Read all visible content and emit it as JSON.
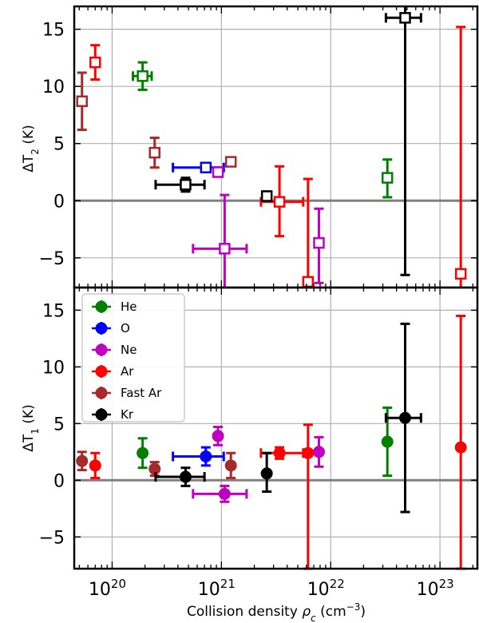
{
  "colors": {
    "He": "#008000",
    "O": "#0000ff",
    "Ne": "#bf00bf",
    "Ar": "#ff0000",
    "Fast Ar": "#a52a2a",
    "Kr": "#000000",
    "zero_line": "#808080",
    "grid": "#b0b0b0"
  },
  "chart_data": [
    {
      "type": "scatter",
      "panel": "top",
      "ylabel_main": "ΔT",
      "ylabel_sub": "2",
      "ylabel_unit": " (K)",
      "xscale": "log",
      "xlim": [
        4.5e+19,
        2.2e+23
      ],
      "ylim": [
        -7.6,
        17
      ],
      "yticks": [
        -5,
        0,
        5,
        10,
        15
      ],
      "grid": true,
      "zero_line": 0,
      "marker": "open-square",
      "points": [
        {
          "species": "He",
          "x": 1.9e+20,
          "y": 10.9,
          "yerr": [
            1.2,
            1.2
          ],
          "xerr": [
            1.55e+20,
            2.3e+20
          ]
        },
        {
          "species": "He",
          "x": 3.3e+22,
          "y": 2.0,
          "yerr": [
            1.7,
            1.6
          ]
        },
        {
          "species": "O",
          "x": 7.2e+20,
          "y": 2.9,
          "xerr": [
            3.6e+20,
            1.05e+21
          ]
        },
        {
          "species": "Ne",
          "x": 9.3e+20,
          "y": 2.5,
          "yerr": [
            0.4,
            0.4
          ]
        },
        {
          "species": "Ne",
          "x": 1.07e+21,
          "y": -4.2,
          "yerr": [
            3.7,
            4.7
          ],
          "xerr": [
            5.5e+20,
            1.7e+21
          ]
        },
        {
          "species": "Ne",
          "x": 7.8e+21,
          "y": -3.7,
          "yerr": [
            3.5,
            3.0
          ]
        },
        {
          "species": "Ar",
          "x": 7e+19,
          "y": 12.1,
          "yerr": [
            1.5,
            1.5
          ]
        },
        {
          "species": "Ar",
          "x": 3.4e+21,
          "y": -0.1,
          "yerr": [
            3.0,
            3.1
          ],
          "xerr": [
            2.3e+21,
            5.6e+21
          ]
        },
        {
          "species": "Ar",
          "x": 6.2e+21,
          "y": -7.1,
          "yerr": [
            1.0,
            9.0
          ]
        },
        {
          "species": "Ar",
          "x": 1.55e+23,
          "y": -6.4,
          "yerr": [
            2.0,
            21.6
          ]
        },
        {
          "species": "Fast Ar",
          "x": 5.3e+19,
          "y": 8.7,
          "yerr": [
            2.5,
            2.5
          ]
        },
        {
          "species": "Fast Ar",
          "x": 2.45e+20,
          "y": 4.2,
          "yerr": [
            1.3,
            1.3
          ]
        },
        {
          "species": "Fast Ar",
          "x": 1.22e+21,
          "y": 3.4,
          "yerr": [
            0.3,
            0.3
          ]
        },
        {
          "species": "Kr",
          "x": 4.7e+20,
          "y": 1.4,
          "yerr": [
            0.6,
            0.6
          ],
          "xerr": [
            2.5e+20,
            7e+20
          ]
        },
        {
          "species": "Kr",
          "x": 2.6e+21,
          "y": 0.4,
          "yerr": [
            0.4,
            0.4
          ]
        },
        {
          "species": "Kr",
          "x": 4.8e+22,
          "y": 16.0,
          "yerr": [
            22.5,
            1.2
          ],
          "xerr": [
            3.2e+22,
            6.7e+22
          ]
        }
      ]
    },
    {
      "type": "scatter",
      "panel": "bottom",
      "xlabel_main": "Collision density ",
      "xlabel_symbol": "ρ",
      "xlabel_symbol_sub": "c",
      "xlabel_unit_base": " (cm",
      "xlabel_unit_sup": "−3",
      "xlabel_unit_end": ")",
      "ylabel_main": "ΔT",
      "ylabel_sub": "1",
      "ylabel_unit": " (K)",
      "xscale": "log",
      "xlim": [
        4.5e+19,
        2.2e+23
      ],
      "ylim": [
        -7.8,
        17
      ],
      "yticks": [
        -5,
        0,
        5,
        10,
        15
      ],
      "xticks": [
        {
          "value": 1e+20,
          "base": "10",
          "exp": "20"
        },
        {
          "value": 1e+21,
          "base": "10",
          "exp": "21"
        },
        {
          "value": 1e+22,
          "base": "10",
          "exp": "22"
        },
        {
          "value": 1e+23,
          "base": "10",
          "exp": "23"
        }
      ],
      "grid": true,
      "zero_line": 0,
      "marker": "filled-circle",
      "legend": {
        "placement": "top-left",
        "entries": [
          "He",
          "O",
          "Ne",
          "Ar",
          "Fast Ar",
          "Kr"
        ]
      },
      "points": [
        {
          "species": "He",
          "x": 1.9e+20,
          "y": 2.4,
          "yerr": [
            1.3,
            1.3
          ]
        },
        {
          "species": "He",
          "x": 3.3e+22,
          "y": 3.4,
          "yerr": [
            3.0,
            3.0
          ]
        },
        {
          "species": "O",
          "x": 7.2e+20,
          "y": 2.1,
          "yerr": [
            0.8,
            0.8
          ],
          "xerr": [
            3.6e+20,
            1.05e+21
          ]
        },
        {
          "species": "Ne",
          "x": 9.3e+20,
          "y": 3.9,
          "yerr": [
            0.8,
            0.8
          ]
        },
        {
          "species": "Ne",
          "x": 1.07e+21,
          "y": -1.2,
          "yerr": [
            0.7,
            0.7
          ],
          "xerr": [
            5.5e+20,
            1.7e+21
          ]
        },
        {
          "species": "Ne",
          "x": 7.8e+21,
          "y": 2.5,
          "yerr": [
            1.3,
            1.3
          ]
        },
        {
          "species": "Ar",
          "x": 7e+19,
          "y": 1.3,
          "yerr": [
            1.1,
            1.1
          ]
        },
        {
          "species": "Ar",
          "x": 3.4e+21,
          "y": 2.4,
          "yerr": [
            0.5,
            0.5
          ],
          "xerr": [
            2.3e+21,
            5.6e+21
          ]
        },
        {
          "species": "Ar",
          "x": 6.2e+21,
          "y": 2.4,
          "yerr": [
            10.2,
            2.5
          ]
        },
        {
          "species": "Ar",
          "x": 1.55e+23,
          "y": 2.9,
          "yerr": [
            10.7,
            11.6
          ]
        },
        {
          "species": "Fast Ar",
          "x": 5.3e+19,
          "y": 1.7,
          "yerr": [
            0.8,
            0.8
          ]
        },
        {
          "species": "Fast Ar",
          "x": 2.45e+20,
          "y": 1.0,
          "yerr": [
            0.6,
            0.6
          ]
        },
        {
          "species": "Fast Ar",
          "x": 1.22e+21,
          "y": 1.3,
          "yerr": [
            1.1,
            1.1
          ]
        },
        {
          "species": "Kr",
          "x": 4.7e+20,
          "y": 0.3,
          "yerr": [
            0.8,
            0.8
          ],
          "xerr": [
            2.5e+20,
            7e+20
          ]
        },
        {
          "species": "Kr",
          "x": 2.6e+21,
          "y": 0.6,
          "yerr": [
            1.6,
            1.8
          ]
        },
        {
          "species": "Kr",
          "x": 4.8e+22,
          "y": 5.5,
          "yerr": [
            8.3,
            8.3
          ],
          "xerr": [
            3.2e+22,
            6.7e+22
          ]
        }
      ]
    }
  ]
}
